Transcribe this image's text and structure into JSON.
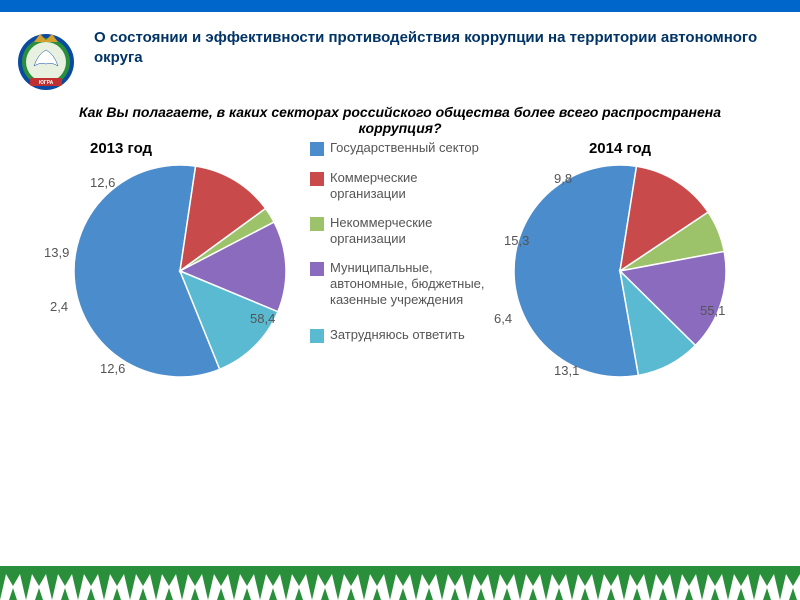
{
  "header": {
    "title": "О состоянии и эффективности противодействия коррупции на территории автономного округа"
  },
  "question": "Как Вы полагаете, в каких секторах российского общества более всего распространена коррупция?",
  "legend": {
    "items": [
      {
        "label": "Государственный сектор",
        "color": "#4a8ccc"
      },
      {
        "label": "Коммерческие организации",
        "color": "#c94a4a"
      },
      {
        "label": "Некоммерческие организации",
        "color": "#9cc26a"
      },
      {
        "label": "Муниципальные, автономные, бюджетные, казенные учреждения",
        "color": "#8a6bbd"
      },
      {
        "label": "Затрудняюсь ответить",
        "color": "#5abad1"
      }
    ]
  },
  "chart2013": {
    "type": "pie",
    "title": "2013 год",
    "title_fontsize": 15,
    "label_fontsize": 13,
    "label_color": "#555555",
    "radius": 106,
    "start_angle_deg": 68,
    "slices": [
      {
        "value": 58.4,
        "label": "58,4",
        "color": "#4a8ccc"
      },
      {
        "value": 12.6,
        "label": "12,6",
        "color": "#c94a4a"
      },
      {
        "value": 2.4,
        "label": "2,4",
        "color": "#9cc26a"
      },
      {
        "value": 13.9,
        "label": "13,9",
        "color": "#8a6bbd"
      },
      {
        "value": 12.6,
        "label": "12,6",
        "color": "#5abad1"
      }
    ]
  },
  "chart2014": {
    "type": "pie",
    "title": "2014 год",
    "title_fontsize": 15,
    "label_fontsize": 13,
    "label_color": "#555555",
    "radius": 106,
    "start_angle_deg": 80,
    "slices": [
      {
        "value": 55.1,
        "label": "55,1",
        "color": "#4a8ccc"
      },
      {
        "value": 13.1,
        "label": "13,1",
        "color": "#c94a4a"
      },
      {
        "value": 6.4,
        "label": "6,4",
        "color": "#9cc26a"
      },
      {
        "value": 15.3,
        "label": "15,3",
        "color": "#8a6bbd"
      },
      {
        "value": 9.8,
        "label": "9,8",
        "color": "#5abad1"
      }
    ]
  },
  "footer": {
    "bg_color": "#2a8f3a",
    "pattern_color": "#ffffff"
  },
  "emblem": {
    "ring_outer": "#0a4aa0",
    "ring_inner": "#2a8f3a",
    "crown": "#d4a030",
    "bird": "#ffffff",
    "banner": "#c03030"
  }
}
